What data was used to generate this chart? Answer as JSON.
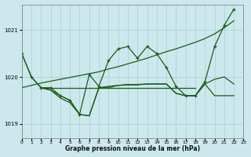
{
  "xlabel": "Graphe pression niveau de la mer (hPa)",
  "bg_color": "#cce8ec",
  "grid_color": "#aacdd4",
  "line_color": "#1a5c1a",
  "xlim": [
    0,
    23
  ],
  "ylim": [
    1018.7,
    1021.55
  ],
  "yticks": [
    1019,
    1020,
    1021
  ],
  "xticks": [
    0,
    1,
    2,
    3,
    4,
    5,
    6,
    7,
    8,
    9,
    10,
    11,
    12,
    13,
    14,
    15,
    16,
    17,
    18,
    19,
    20,
    21,
    22,
    23
  ],
  "lineA_x": [
    0,
    1,
    2,
    3,
    4,
    5,
    6,
    7,
    8,
    9,
    10,
    11,
    12,
    13,
    14,
    15,
    16,
    17,
    18,
    19,
    20,
    21,
    22
  ],
  "lineA_y": [
    1019.77,
    1019.82,
    1019.87,
    1019.91,
    1019.95,
    1019.99,
    1020.03,
    1020.07,
    1020.11,
    1020.17,
    1020.22,
    1020.28,
    1020.34,
    1020.4,
    1020.47,
    1020.54,
    1020.6,
    1020.67,
    1020.74,
    1020.82,
    1020.92,
    1021.05,
    1021.2
  ],
  "lineB_x": [
    0,
    1,
    2,
    3,
    4,
    5,
    6,
    7,
    8,
    9,
    10,
    11,
    12,
    13,
    14,
    15,
    16,
    17,
    18,
    19,
    20,
    21,
    22
  ],
  "lineB_y": [
    1020.5,
    1020.0,
    1019.77,
    1019.77,
    1019.6,
    1019.5,
    1019.2,
    1020.05,
    1019.8,
    1020.35,
    1020.6,
    1020.65,
    1020.4,
    1020.65,
    1020.5,
    1020.2,
    1019.8,
    1019.6,
    1019.6,
    1019.9,
    1020.65,
    1021.1,
    1021.45
  ],
  "lineC_x": [
    2,
    3,
    4,
    5,
    6,
    7,
    8,
    9,
    10,
    11,
    12,
    13,
    14,
    15,
    16,
    17,
    18
  ],
  "lineC_y": [
    1019.77,
    1019.77,
    1019.77,
    1019.77,
    1019.77,
    1019.77,
    1019.77,
    1019.77,
    1019.77,
    1019.77,
    1019.77,
    1019.77,
    1019.77,
    1019.77,
    1019.77,
    1019.77,
    1019.77
  ],
  "lineD_x": [
    0,
    1,
    2,
    3,
    4,
    5,
    6,
    7,
    8,
    9,
    10,
    11,
    12,
    13,
    14,
    15,
    16,
    17,
    18,
    19,
    20,
    21,
    22
  ],
  "lineD_y": [
    1020.5,
    1020.0,
    1019.77,
    1019.72,
    1019.55,
    1019.45,
    1019.2,
    1019.17,
    1019.77,
    1019.77,
    1019.82,
    1019.83,
    1019.83,
    1019.85,
    1019.85,
    1019.85,
    1019.65,
    1019.6,
    1019.6,
    1019.85,
    1019.95,
    1020.0,
    1019.85
  ],
  "lineE_x": [
    2,
    3,
    4,
    5,
    6,
    7,
    8,
    9,
    10,
    11,
    12,
    13,
    14,
    15,
    16,
    17,
    18,
    19,
    20,
    21,
    22
  ],
  "lineE_y": [
    1019.77,
    1019.72,
    1019.6,
    1019.5,
    1019.2,
    1019.17,
    1019.77,
    1019.8,
    1019.82,
    1019.84,
    1019.84,
    1019.85,
    1019.85,
    1019.85,
    1019.65,
    1019.6,
    1019.6,
    1019.85,
    1019.6,
    1019.6,
    1019.6
  ]
}
